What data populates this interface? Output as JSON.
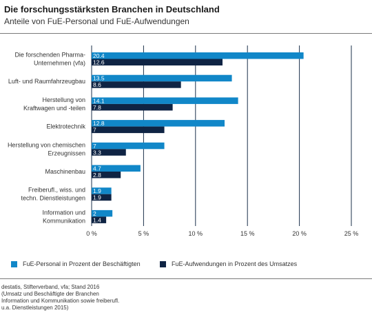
{
  "title": "Die forschungsstärksten Branchen in Deutschland",
  "subtitle": "Anteile von FuE-Personal und FuE-Aufwendungen",
  "source": "destatis, Stifterverband, vfa; Stand 2016\n(Umsatz und Beschäftigte der Branchen\nInformation und Kommunikation sowie freiberufl.\nu.a. Dienstleistungen 2015)",
  "colors": {
    "personal": "#1187c8",
    "aufwendungen": "#0f2444",
    "grid": "#1a2f4a"
  },
  "chart_data": {
    "type": "bar",
    "orientation": "horizontal",
    "categories": [
      [
        "Die forschenden Pharma-",
        "Unternehmen (vfa)"
      ],
      [
        "Luft- und Raumfahrzeugbau"
      ],
      [
        "Herstellung von",
        "Kraftwagen und -teilen"
      ],
      [
        "Elektrotechnik"
      ],
      [
        "Herstellung von chemischen",
        "Erzeugnissen"
      ],
      [
        "Maschinenbau"
      ],
      [
        "Freiberufl., wiss. und",
        "techn. Dienstleistungen"
      ],
      [
        "Information und",
        "Kommunikation"
      ]
    ],
    "series": [
      {
        "name": "FuE-Personal in Prozent der Beschäftigten",
        "values": [
          20.4,
          13.5,
          14.1,
          12.8,
          7,
          4.7,
          1.9,
          2
        ],
        "labels": [
          "20.4",
          "13.5",
          "14.1",
          "12.8",
          "7",
          "4.7",
          "1.9",
          "2"
        ]
      },
      {
        "name": "FuE-Aufwendungen in Prozent des Umsatzes",
        "values": [
          12.6,
          8.6,
          7.8,
          7,
          3.3,
          2.8,
          1.9,
          1.4
        ],
        "labels": [
          "12.6",
          "8.6",
          "7.8",
          "7",
          "3.3",
          "2.8",
          "1.9",
          "1.4"
        ]
      }
    ],
    "xlim": [
      0,
      25
    ],
    "xticks": [
      0,
      5,
      10,
      15,
      20,
      25
    ],
    "xtick_labels": [
      "0 %",
      "5 %",
      "10 %",
      "15 %",
      "20 %",
      "25 %"
    ],
    "grid": true,
    "legend": "bottom"
  }
}
